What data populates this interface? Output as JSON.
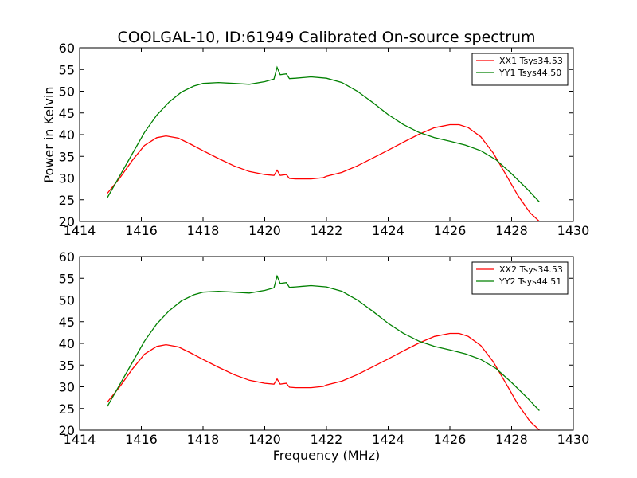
{
  "title": "COOLGAL-10, ID:61949 Calibrated On-source spectrum",
  "colors": {
    "xx": "#ff0000",
    "yy": "#008000"
  },
  "chart_data": [
    {
      "type": "line",
      "title": "COOLGAL-10, ID:61949 Calibrated On-source spectrum",
      "xlabel": "",
      "ylabel": "Power in Kelvin",
      "xlim": [
        1414,
        1430
      ],
      "ylim": [
        20,
        60
      ],
      "xticks": [
        1414,
        1416,
        1418,
        1420,
        1422,
        1424,
        1426,
        1428,
        1430
      ],
      "yticks": [
        20,
        25,
        30,
        35,
        40,
        45,
        50,
        55,
        60
      ],
      "legend_position": "top-right",
      "series": [
        {
          "name": "XX1 Tsys34.53",
          "color": "#ff0000",
          "x": [
            1414.9,
            1415.3,
            1415.7,
            1416.1,
            1416.5,
            1416.8,
            1417.2,
            1417.6,
            1418.0,
            1418.5,
            1419.0,
            1419.5,
            1420.0,
            1420.3,
            1420.4,
            1420.5,
            1420.7,
            1420.8,
            1421.0,
            1421.5,
            1421.9,
            1422.0,
            1422.5,
            1423.0,
            1423.5,
            1424.0,
            1424.5,
            1425.0,
            1425.5,
            1426.0,
            1426.3,
            1426.6,
            1427.0,
            1427.4,
            1427.8,
            1428.2,
            1428.6,
            1428.9
          ],
          "y": [
            26.5,
            30.0,
            34.0,
            37.5,
            39.3,
            39.7,
            39.2,
            37.8,
            36.3,
            34.5,
            32.8,
            31.5,
            30.8,
            30.6,
            31.8,
            30.6,
            30.8,
            29.9,
            29.8,
            29.8,
            30.1,
            30.4,
            31.3,
            32.8,
            34.6,
            36.4,
            38.3,
            40.1,
            41.6,
            42.3,
            42.3,
            41.6,
            39.5,
            35.8,
            31.0,
            26.0,
            22.0,
            20.0
          ]
        },
        {
          "name": "YY1 Tsys44.50",
          "color": "#008000",
          "x": [
            1414.9,
            1415.3,
            1415.7,
            1416.1,
            1416.5,
            1416.9,
            1417.3,
            1417.7,
            1418.0,
            1418.5,
            1419.0,
            1419.5,
            1420.0,
            1420.3,
            1420.4,
            1420.5,
            1420.7,
            1420.8,
            1421.0,
            1421.5,
            1422.0,
            1422.5,
            1423.0,
            1423.5,
            1424.0,
            1424.5,
            1425.0,
            1425.5,
            1426.0,
            1426.5,
            1427.0,
            1427.5,
            1428.0,
            1428.5,
            1428.9
          ],
          "y": [
            25.5,
            30.5,
            35.5,
            40.5,
            44.5,
            47.5,
            49.8,
            51.2,
            51.8,
            52.0,
            51.8,
            51.6,
            52.2,
            52.8,
            55.5,
            53.8,
            54.0,
            52.9,
            53.0,
            53.3,
            53.0,
            52.0,
            50.0,
            47.4,
            44.6,
            42.3,
            40.5,
            39.3,
            38.5,
            37.6,
            36.3,
            34.2,
            31.0,
            27.5,
            24.5
          ]
        }
      ]
    },
    {
      "type": "line",
      "title": "",
      "xlabel": "Frequency (MHz)",
      "ylabel": "",
      "xlim": [
        1414,
        1430
      ],
      "ylim": [
        20,
        60
      ],
      "xticks": [
        1414,
        1416,
        1418,
        1420,
        1422,
        1424,
        1426,
        1428,
        1430
      ],
      "yticks": [
        20,
        25,
        30,
        35,
        40,
        45,
        50,
        55,
        60
      ],
      "legend_position": "top-right",
      "series": [
        {
          "name": "XX2 Tsys34.53",
          "color": "#ff0000",
          "x": [
            1414.9,
            1415.3,
            1415.7,
            1416.1,
            1416.5,
            1416.8,
            1417.2,
            1417.6,
            1418.0,
            1418.5,
            1419.0,
            1419.5,
            1420.0,
            1420.3,
            1420.4,
            1420.5,
            1420.7,
            1420.8,
            1421.0,
            1421.5,
            1421.9,
            1422.0,
            1422.5,
            1423.0,
            1423.5,
            1424.0,
            1424.5,
            1425.0,
            1425.5,
            1426.0,
            1426.3,
            1426.6,
            1427.0,
            1427.4,
            1427.8,
            1428.2,
            1428.6,
            1428.9
          ],
          "y": [
            26.5,
            30.0,
            34.0,
            37.5,
            39.3,
            39.7,
            39.2,
            37.8,
            36.3,
            34.5,
            32.8,
            31.5,
            30.8,
            30.6,
            31.8,
            30.6,
            30.8,
            29.9,
            29.8,
            29.8,
            30.1,
            30.4,
            31.3,
            32.8,
            34.6,
            36.4,
            38.3,
            40.1,
            41.6,
            42.3,
            42.3,
            41.6,
            39.5,
            35.8,
            31.0,
            26.0,
            22.0,
            20.0
          ]
        },
        {
          "name": "YY2 Tsys44.51",
          "color": "#008000",
          "x": [
            1414.9,
            1415.3,
            1415.7,
            1416.1,
            1416.5,
            1416.9,
            1417.3,
            1417.7,
            1418.0,
            1418.5,
            1419.0,
            1419.5,
            1420.0,
            1420.3,
            1420.4,
            1420.5,
            1420.7,
            1420.8,
            1421.0,
            1421.5,
            1422.0,
            1422.5,
            1423.0,
            1423.5,
            1424.0,
            1424.5,
            1425.0,
            1425.5,
            1426.0,
            1426.5,
            1427.0,
            1427.5,
            1428.0,
            1428.5,
            1428.9
          ],
          "y": [
            25.5,
            30.5,
            35.5,
            40.5,
            44.5,
            47.5,
            49.8,
            51.2,
            51.8,
            52.0,
            51.8,
            51.6,
            52.2,
            52.8,
            55.5,
            53.8,
            54.0,
            52.9,
            53.0,
            53.3,
            53.0,
            52.0,
            50.0,
            47.4,
            44.6,
            42.3,
            40.5,
            39.3,
            38.5,
            37.6,
            36.3,
            34.2,
            31.0,
            27.5,
            24.5
          ]
        }
      ]
    }
  ]
}
